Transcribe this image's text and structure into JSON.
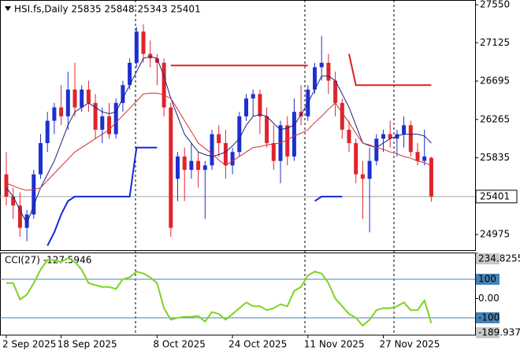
{
  "chart_data": [
    {
      "type": "candlestick",
      "title": "HSI.fs,Daily  25835 25848 25343 25401",
      "categories": [
        "2 Sep 2025",
        null,
        null,
        null,
        null,
        null,
        null,
        null,
        "18 Sep 2025",
        null,
        null,
        null,
        null,
        null,
        null,
        null,
        null,
        null,
        null,
        null,
        null,
        null,
        "8 Oct 2025",
        null,
        null,
        null,
        null,
        null,
        null,
        null,
        null,
        null,
        null,
        "24 Oct 2025",
        null,
        null,
        null,
        null,
        null,
        null,
        null,
        null,
        null,
        null,
        "11 Nov 2025",
        null,
        null,
        null,
        null,
        null,
        null,
        null,
        null,
        null,
        null,
        "27 Nov 2025",
        null,
        null,
        null,
        null,
        null,
        null,
        null
      ],
      "open": [
        25650,
        25400,
        25300,
        25050,
        25200,
        25650,
        26000,
        26250,
        26400,
        26300,
        26600,
        26400,
        26600,
        26450,
        26150,
        26300,
        26100,
        26450,
        26650,
        26900,
        27250,
        27000,
        26950,
        26900,
        26400,
        25600,
        25850,
        25700,
        25800,
        25700,
        25750,
        26100,
        26000,
        25750,
        25900,
        26300,
        26500,
        26550,
        26300,
        26000,
        25800,
        26200,
        25850,
        26350,
        26300,
        26600,
        26850,
        26900,
        26700,
        26450,
        26150,
        26000,
        25650,
        25600,
        25800,
        26050,
        26100,
        26050,
        26100,
        26200,
        25900,
        25800,
        25835
      ],
      "high": [
        25900,
        25500,
        25450,
        25250,
        25700,
        26100,
        26350,
        26450,
        26650,
        26800,
        26900,
        26650,
        26700,
        26550,
        26400,
        26450,
        26500,
        26700,
        26950,
        27300,
        27330,
        27150,
        27000,
        26950,
        26450,
        25900,
        25950,
        26000,
        25900,
        25800,
        26150,
        26200,
        26150,
        25950,
        26350,
        26550,
        26600,
        26600,
        26400,
        26200,
        26250,
        26300,
        26500,
        26650,
        26650,
        26900,
        27200,
        27000,
        26800,
        26500,
        26250,
        26050,
        25800,
        25950,
        26100,
        26150,
        26250,
        26150,
        26300,
        26250,
        26000,
        26150,
        25848
      ],
      "low": [
        25300,
        25150,
        24950,
        24900,
        25150,
        25600,
        25900,
        26100,
        26200,
        26150,
        26300,
        26350,
        26350,
        26050,
        26000,
        26050,
        26050,
        26350,
        26600,
        26850,
        26900,
        26850,
        26650,
        26300,
        24950,
        25350,
        25350,
        25600,
        25500,
        25150,
        25700,
        25850,
        25600,
        25650,
        25850,
        26250,
        26300,
        26100,
        25950,
        25700,
        25550,
        25750,
        25800,
        26200,
        26250,
        26550,
        26700,
        26550,
        26300,
        26050,
        25900,
        25550,
        25150,
        25000,
        25750,
        25900,
        25950,
        25850,
        25950,
        25850,
        25750,
        25750,
        25343
      ],
      "close": [
        25400,
        25300,
        25050,
        25200,
        25650,
        26000,
        26250,
        26400,
        26300,
        26600,
        26400,
        26600,
        26450,
        26150,
        26300,
        26100,
        26450,
        26650,
        26900,
        27250,
        27000,
        26950,
        26900,
        26400,
        25050,
        25850,
        25700,
        25800,
        25700,
        25750,
        26100,
        26000,
        25750,
        25900,
        26300,
        26500,
        26550,
        26300,
        26000,
        25800,
        26200,
        25850,
        26350,
        26300,
        26600,
        26850,
        26900,
        26700,
        26450,
        26150,
        26000,
        25650,
        25600,
        25800,
        26050,
        26100,
        26050,
        26100,
        26200,
        25900,
        25800,
        25850,
        25401
      ],
      "up_color": "#1e2fd0",
      "down_color": "#e0242a",
      "overlays": [
        {
          "color": "#1a237e",
          "width": 1,
          "values": [
            25500,
            25400,
            25250,
            25100,
            25300,
            25500,
            25650,
            25800,
            26000,
            26200,
            26350,
            26400,
            26450,
            26400,
            26350,
            26330,
            26350,
            26500,
            26650,
            26800,
            26950,
            26970,
            26950,
            26750,
            26500,
            26300,
            26100,
            26000,
            25900,
            25870,
            25850,
            25870,
            25900,
            25970,
            26050,
            26200,
            26300,
            26320,
            26300,
            26220,
            26150,
            26170,
            26200,
            26320,
            26450,
            26600,
            26750,
            26750,
            26700,
            26550,
            26400,
            26200,
            26000,
            25970,
            25950,
            26000,
            26050,
            26080,
            26100,
            26100,
            26100,
            26080,
            26000
          ]
        },
        {
          "color": "#d32f2f",
          "width": 1,
          "values": [
            25550,
            25520,
            25490,
            25470,
            25480,
            25500,
            25580,
            25660,
            25740,
            25820,
            25900,
            25950,
            26000,
            26050,
            26100,
            26150,
            26230,
            26310,
            26390,
            26470,
            26550,
            26560,
            26560,
            26540,
            26500,
            26380,
            26250,
            26130,
            26000,
            25940,
            25880,
            25810,
            25750,
            25800,
            25850,
            25900,
            25950,
            25960,
            25980,
            25990,
            26000,
            26040,
            26080,
            26110,
            26150,
            26230,
            26300,
            26380,
            26450,
            26340,
            26230,
            26110,
            26000,
            25980,
            25950,
            25930,
            25900,
            25880,
            25850,
            25830,
            25800,
            25780,
            25750
          ]
        },
        {
          "color": "#1428d6",
          "width": 2,
          "values": [
            null,
            null,
            null,
            null,
            null,
            null,
            24850,
            25000,
            25200,
            25350,
            25400,
            25400,
            25400,
            25400,
            25400,
            25400,
            25400,
            25400,
            25400,
            25950,
            25950,
            25950,
            25950,
            null,
            null,
            null,
            null,
            null,
            null,
            null,
            null,
            null,
            null,
            null,
            null,
            null,
            null,
            null,
            null,
            null,
            null,
            null,
            null,
            null,
            null,
            25350,
            25400,
            25400,
            25400,
            25400,
            null,
            null,
            null,
            null,
            null,
            null,
            null,
            null,
            null,
            null,
            null,
            null,
            null
          ]
        },
        {
          "color": "#e02020",
          "width": 2,
          "values": [
            null,
            null,
            null,
            null,
            null,
            null,
            null,
            null,
            null,
            null,
            null,
            null,
            null,
            null,
            null,
            null,
            null,
            null,
            null,
            null,
            null,
            null,
            null,
            null,
            26870,
            26870,
            26870,
            26870,
            26870,
            26870,
            26870,
            26870,
            26870,
            26870,
            26870,
            26870,
            26870,
            26870,
            26870,
            26870,
            26870,
            26870,
            26870,
            26870,
            26870,
            null,
            null,
            null,
            null,
            null,
            27000,
            26650,
            26650,
            26650,
            26650,
            26650,
            26650,
            26650,
            26650,
            26650,
            26650,
            26650,
            26650
          ]
        }
      ],
      "ylim": [
        24800,
        27595
      ],
      "yticks": [
        24975,
        25835,
        26265,
        26695,
        27125,
        27550
      ],
      "last_price": 25401
    },
    {
      "type": "line",
      "title": "CCI(27) -127.5946",
      "color": "#7ed321",
      "values": [
        80,
        80,
        -5,
        20,
        80,
        150,
        200,
        200,
        190,
        210,
        190,
        150,
        80,
        70,
        60,
        60,
        50,
        100,
        110,
        140,
        130,
        110,
        80,
        -50,
        -110,
        -100,
        -95,
        -95,
        -90,
        -120,
        -70,
        -80,
        -110,
        -80,
        -50,
        -20,
        -40,
        -40,
        -60,
        -50,
        -30,
        -40,
        40,
        60,
        120,
        140,
        130,
        80,
        0,
        -40,
        -80,
        -100,
        -140,
        -110,
        -60,
        -50,
        -50,
        -40,
        -20,
        -60,
        -60,
        -10,
        -127.5946
      ],
      "ylim": [
        -189.9376,
        234.8255
      ],
      "yticks": [
        -189.9376,
        -100,
        {
          "value": 0,
          "label": "0.00"
        },
        100,
        234.8255
      ],
      "levels": [
        100,
        -100
      ],
      "level_color": "#4682b4"
    }
  ]
}
